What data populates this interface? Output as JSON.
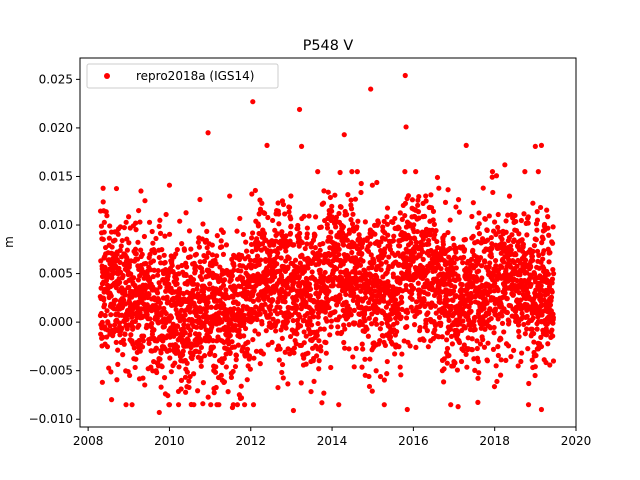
{
  "chart_data": {
    "type": "scatter",
    "title": "P548 V",
    "xlabel": "",
    "ylabel": "m",
    "xlim": [
      2007.8,
      2020.0
    ],
    "ylim": [
      -0.0108,
      0.0272
    ],
    "x_ticks": [
      2008,
      2010,
      2012,
      2014,
      2016,
      2018,
      2020
    ],
    "y_ticks": [
      -0.01,
      -0.005,
      0.0,
      0.005,
      0.01,
      0.015,
      0.02,
      0.025
    ],
    "x_tick_labels": [
      "2008",
      "2010",
      "2012",
      "2014",
      "2016",
      "2018",
      "2020"
    ],
    "y_tick_labels": [
      "−0.010",
      "−0.005",
      "0.000",
      "0.005",
      "0.010",
      "0.015",
      "0.020",
      "0.025"
    ],
    "grid": false,
    "legend_position": "top-left",
    "series": [
      {
        "name": "repro2018a (IGS14)",
        "color": "#ff0000",
        "marker": "circle",
        "date_range": [
          2008.3,
          2019.45
        ],
        "daily_noise_std": 0.0038,
        "mean_trend": [
          [
            2008.3,
            0.004
          ],
          [
            2009.0,
            0.0025
          ],
          [
            2009.5,
            0.002
          ],
          [
            2010.0,
            0.0005
          ],
          [
            2010.5,
            0.001
          ],
          [
            2011.0,
            0.0015
          ],
          [
            2011.5,
            0.0005
          ],
          [
            2012.0,
            0.003
          ],
          [
            2012.5,
            0.0045
          ],
          [
            2013.0,
            0.004
          ],
          [
            2013.5,
            0.002
          ],
          [
            2014.0,
            0.0055
          ],
          [
            2014.5,
            0.0055
          ],
          [
            2015.0,
            0.003
          ],
          [
            2015.5,
            0.0035
          ],
          [
            2016.0,
            0.0055
          ],
          [
            2016.5,
            0.005
          ],
          [
            2017.0,
            0.002
          ],
          [
            2017.5,
            0.003
          ],
          [
            2018.0,
            0.004
          ],
          [
            2018.5,
            0.0045
          ],
          [
            2019.0,
            0.003
          ],
          [
            2019.45,
            0.003
          ]
        ],
        "notable_points": [
          {
            "x": 2015.8,
            "y": 0.0254
          },
          {
            "x": 2014.95,
            "y": 0.024
          },
          {
            "x": 2012.05,
            "y": 0.0227
          },
          {
            "x": 2013.2,
            "y": 0.0219
          },
          {
            "x": 2015.82,
            "y": 0.0201
          },
          {
            "x": 2010.95,
            "y": 0.0195
          },
          {
            "x": 2014.3,
            "y": 0.0193
          },
          {
            "x": 2012.4,
            "y": 0.0182
          },
          {
            "x": 2013.25,
            "y": 0.0181
          },
          {
            "x": 2019.0,
            "y": 0.0181
          },
          {
            "x": 2019.15,
            "y": 0.0182
          },
          {
            "x": 2017.3,
            "y": 0.0182
          },
          {
            "x": 2010.0,
            "y": 0.0141
          },
          {
            "x": 2009.3,
            "y": 0.0135
          },
          {
            "x": 2018.25,
            "y": 0.0162
          },
          {
            "x": 2009.75,
            "y": -0.0093
          },
          {
            "x": 2013.05,
            "y": -0.0091
          },
          {
            "x": 2015.85,
            "y": -0.009
          },
          {
            "x": 2019.15,
            "y": -0.009
          },
          {
            "x": 2011.55,
            "y": -0.0088
          },
          {
            "x": 2017.1,
            "y": -0.0087
          },
          {
            "x": 2013.75,
            "y": -0.0083
          },
          {
            "x": 2010.6,
            "y": -0.0085
          },
          {
            "x": 2008.35,
            "y": -0.0062
          }
        ]
      }
    ]
  }
}
